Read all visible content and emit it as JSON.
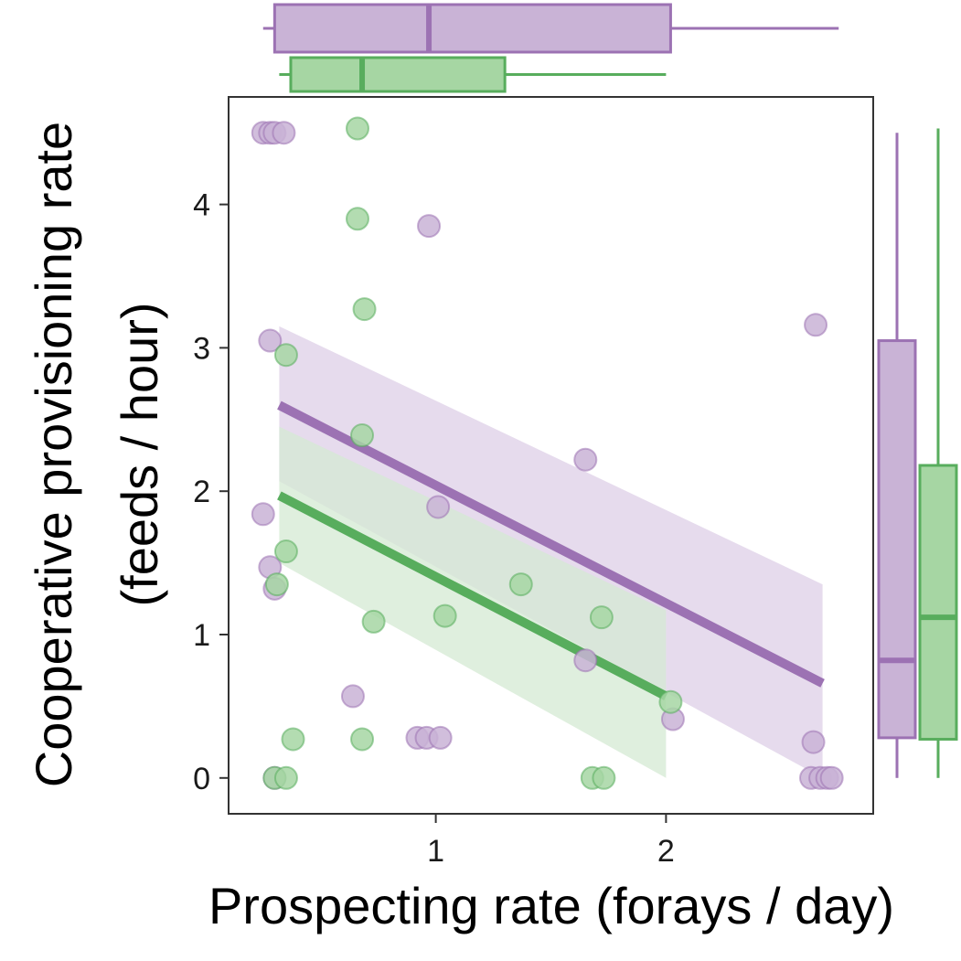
{
  "colors": {
    "purple": "#9c72b3",
    "purple_fill": "#c9b3d6",
    "purple_band": "#e5d9ec",
    "green": "#58ad5d",
    "green_fill": "#a6d6a3",
    "green_band": "#d4ead3",
    "panel_border": "#333333"
  },
  "chart_data": {
    "type": "scatter",
    "xlabel": "Prospecting rate (forays / day)",
    "ylabel_lines": [
      "Cooperative provisioning rate",
      "(feeds / hour)"
    ],
    "xlim": [
      0.1,
      2.9
    ],
    "ylim": [
      -0.25,
      4.75
    ],
    "x_ticks": [
      1,
      2
    ],
    "x_tick_labels": [
      "1",
      "2"
    ],
    "y_ticks": [
      0,
      1,
      2,
      3,
      4
    ],
    "y_tick_labels": [
      "0",
      "1",
      "2",
      "3",
      "4"
    ],
    "grid": false,
    "legend": "none",
    "series": [
      {
        "color_key": "purple",
        "points": [
          [
            0.25,
            4.5
          ],
          [
            0.28,
            4.5
          ],
          [
            0.3,
            4.5
          ],
          [
            0.34,
            4.5
          ],
          [
            0.28,
            3.05
          ],
          [
            0.25,
            1.84
          ],
          [
            0.28,
            1.47
          ],
          [
            0.3,
            1.32
          ],
          [
            0.3,
            0.0
          ],
          [
            0.97,
            3.85
          ],
          [
            1.01,
            1.89
          ],
          [
            0.92,
            0.28
          ],
          [
            0.96,
            0.28
          ],
          [
            1.02,
            0.28
          ],
          [
            0.64,
            0.57
          ],
          [
            1.65,
            2.22
          ],
          [
            1.65,
            0.82
          ],
          [
            2.03,
            0.41
          ],
          [
            2.65,
            3.16
          ],
          [
            2.64,
            0.25
          ],
          [
            2.63,
            0.0
          ],
          [
            2.67,
            0.0
          ],
          [
            2.7,
            0.0
          ],
          [
            2.72,
            0.0
          ]
        ],
        "fit": {
          "x": [
            0.32,
            2.68
          ],
          "y": [
            2.6,
            0.66
          ]
        },
        "ci": {
          "x": [
            0.32,
            2.68
          ],
          "lower": [
            2.07,
            0.0
          ],
          "upper": [
            3.15,
            1.35
          ]
        },
        "x_box": {
          "whisker_low": 0.25,
          "q1": 0.3,
          "median": 0.97,
          "q3": 2.02,
          "whisker_high": 2.75
        },
        "y_box": {
          "whisker_low": 0.0,
          "q1": 0.28,
          "median": 0.82,
          "q3": 3.05,
          "whisker_high": 4.5
        }
      },
      {
        "color_key": "green",
        "points": [
          [
            0.66,
            4.53
          ],
          [
            0.66,
            3.9
          ],
          [
            0.69,
            3.27
          ],
          [
            0.35,
            2.95
          ],
          [
            0.68,
            2.39
          ],
          [
            0.35,
            1.58
          ],
          [
            0.31,
            1.35
          ],
          [
            0.73,
            1.09
          ],
          [
            1.04,
            1.13
          ],
          [
            1.37,
            1.35
          ],
          [
            1.72,
            1.12
          ],
          [
            0.38,
            0.27
          ],
          [
            0.68,
            0.27
          ],
          [
            2.02,
            0.53
          ],
          [
            0.3,
            0.0
          ],
          [
            0.35,
            0.0
          ],
          [
            1.68,
            0.0
          ],
          [
            1.73,
            0.0
          ]
        ],
        "fit": {
          "x": [
            0.32,
            2.0
          ],
          "y": [
            1.97,
            0.57
          ]
        },
        "ci": {
          "x": [
            0.32,
            2.0
          ],
          "lower": [
            1.5,
            0.0
          ],
          "upper": [
            2.45,
            1.17
          ]
        },
        "x_box": {
          "whisker_low": 0.32,
          "q1": 0.37,
          "median": 0.68,
          "q3": 1.3,
          "whisker_high": 2.0
        },
        "y_box": {
          "whisker_low": 0.0,
          "q1": 0.27,
          "median": 1.12,
          "q3": 2.18,
          "whisker_high": 4.53
        }
      }
    ]
  }
}
